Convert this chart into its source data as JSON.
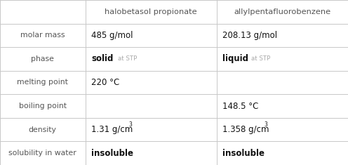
{
  "col_headers": [
    "",
    "halobetasol propionate",
    "allylpentafluorobenzene"
  ],
  "rows": [
    {
      "label": "molar mass",
      "col1": "485 g/mol",
      "col2": "208.13 g/mol",
      "type": "plain"
    },
    {
      "label": "phase",
      "col1_main": "solid",
      "col1_sub": "at STP",
      "col2_main": "liquid",
      "col2_sub": "at STP",
      "type": "phase"
    },
    {
      "label": "melting point",
      "col1": "220 °C",
      "col2": "",
      "type": "plain"
    },
    {
      "label": "boiling point",
      "col1": "",
      "col2": "148.5 °C",
      "type": "plain"
    },
    {
      "label": "density",
      "col1": "1.31 g/cm",
      "col2": "1.358 g/cm",
      "type": "density"
    },
    {
      "label": "solubility in water",
      "col1": "insoluble",
      "col2": "insoluble",
      "type": "bold"
    }
  ],
  "bg_color": "#ffffff",
  "line_color": "#c8c8c8",
  "header_color": "#555555",
  "label_color": "#555555",
  "data_color": "#111111",
  "phase_sub_color": "#aaaaaa",
  "col_bounds": [
    0.0,
    0.245,
    0.622,
    1.0
  ],
  "figsize": [
    4.96,
    2.35
  ],
  "dpi": 100,
  "header_fs": 8.2,
  "label_fs": 7.8,
  "data_fs": 8.5,
  "phase_main_fs": 8.5,
  "phase_sub_fs": 6.2,
  "super_fs": 5.5
}
